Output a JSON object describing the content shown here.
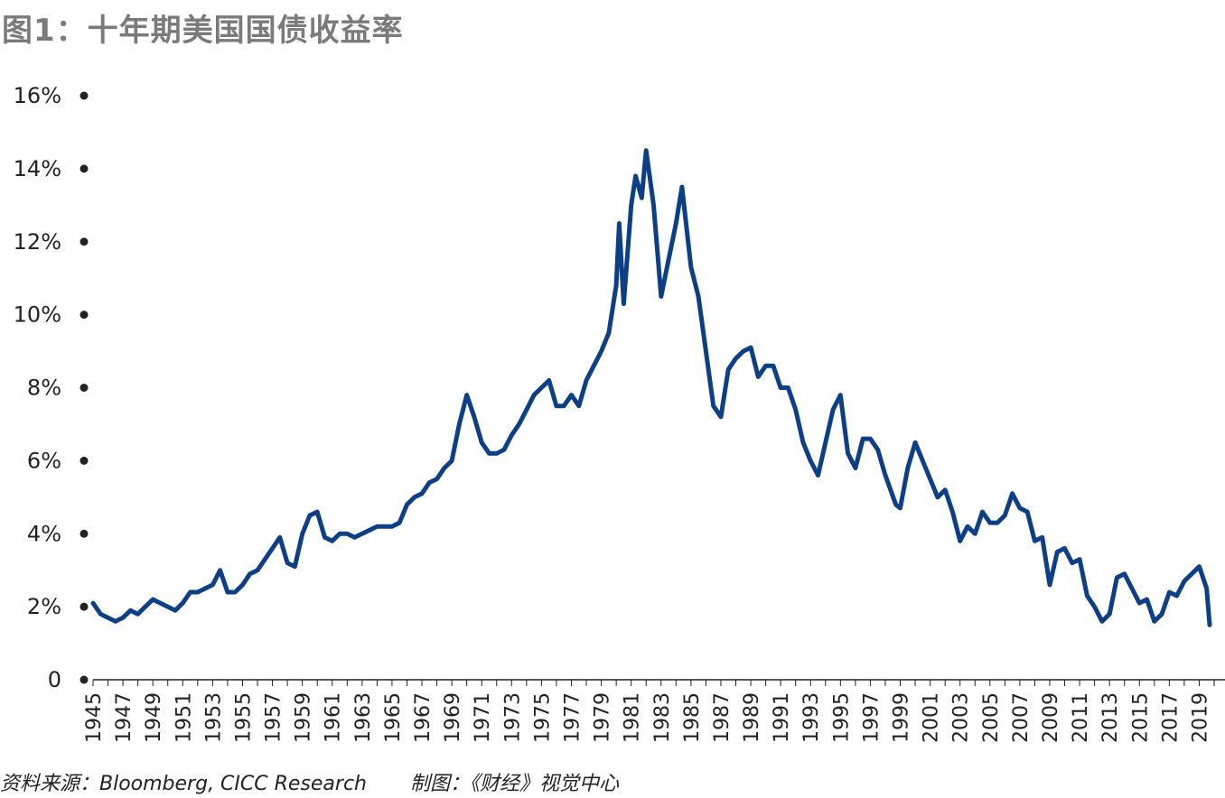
{
  "title": "图1：十年期美国国债收益率",
  "source": "资料来源：Bloomberg, CICC Research",
  "credit": "制图：《财经》视觉中心",
  "colors": {
    "line": "#0d3f87",
    "axis": "#222222",
    "title": "#7a7a7a"
  },
  "chart_data": {
    "type": "line",
    "title": "图1：十年期美国国债收益率",
    "xlabel": "",
    "ylabel": "",
    "xlim": [
      1945,
      2020
    ],
    "ylim": [
      0,
      16
    ],
    "yticks": [
      0,
      2,
      4,
      6,
      8,
      10,
      12,
      14,
      16
    ],
    "ytick_labels": [
      "0",
      "2%",
      "4%",
      "6%",
      "8%",
      "10%",
      "12%",
      "14%",
      "16%"
    ],
    "xtick_labels": [
      "1945",
      "1947",
      "1949",
      "1951",
      "1953",
      "1955",
      "1957",
      "1959",
      "1961",
      "1963",
      "1965",
      "1967",
      "1969",
      "1971",
      "1973",
      "1975",
      "1977",
      "1979",
      "1981",
      "1983",
      "1985",
      "1987",
      "1989",
      "1991",
      "1993",
      "1995",
      "1997",
      "1999",
      "2001",
      "2003",
      "2005",
      "2007",
      "2009",
      "2011",
      "2013",
      "2015",
      "2017",
      "2019"
    ],
    "grid": false,
    "series": [
      {
        "x": [
          1945.0,
          1945.5,
          1946.0,
          1946.5,
          1947.0,
          1947.5,
          1948.0,
          1948.5,
          1949.0,
          1949.5,
          1950.0,
          1950.5,
          1951.0,
          1951.5,
          1952.0,
          1952.5,
          1953.0,
          1953.5,
          1954.0,
          1954.5,
          1955.0,
          1955.5,
          1956.0,
          1956.5,
          1957.0,
          1957.5,
          1958.0,
          1958.5,
          1959.0,
          1959.5,
          1960.0,
          1960.5,
          1961.0,
          1961.5,
          1962.0,
          1962.5,
          1963.0,
          1963.5,
          1964.0,
          1964.5,
          1965.0,
          1965.5,
          1966.0,
          1966.5,
          1967.0,
          1967.5,
          1968.0,
          1968.5,
          1969.0,
          1969.5,
          1970.0,
          1970.5,
          1971.0,
          1971.5,
          1972.0,
          1972.5,
          1973.0,
          1973.5,
          1974.0,
          1974.5,
          1975.0,
          1975.5,
          1976.0,
          1976.5,
          1977.0,
          1977.5,
          1978.0,
          1978.5,
          1979.0,
          1979.5,
          1980.0,
          1980.2,
          1980.5,
          1981.0,
          1981.3,
          1981.7,
          1982.0,
          1982.5,
          1983.0,
          1983.5,
          1984.0,
          1984.4,
          1985.0,
          1985.5,
          1986.0,
          1986.5,
          1987.0,
          1987.5,
          1988.0,
          1988.5,
          1989.0,
          1989.5,
          1990.0,
          1990.5,
          1991.0,
          1991.5,
          1992.0,
          1992.5,
          1993.0,
          1993.5,
          1994.0,
          1994.5,
          1995.0,
          1995.5,
          1996.0,
          1996.5,
          1997.0,
          1997.5,
          1998.0,
          1998.7,
          1999.0,
          1999.5,
          2000.0,
          2000.5,
          2001.0,
          2001.5,
          2002.0,
          2002.5,
          2003.0,
          2003.5,
          2004.0,
          2004.5,
          2005.0,
          2005.5,
          2006.0,
          2006.5,
          2007.0,
          2007.5,
          2008.0,
          2008.5,
          2009.0,
          2009.5,
          2010.0,
          2010.5,
          2011.0,
          2011.5,
          2012.0,
          2012.5,
          2013.0,
          2013.5,
          2014.0,
          2014.5,
          2015.0,
          2015.5,
          2016.0,
          2016.5,
          2017.0,
          2017.5,
          2018.0,
          2018.5,
          2019.0,
          2019.5,
          2019.7
        ],
        "y": [
          2.1,
          1.8,
          1.7,
          1.6,
          1.7,
          1.9,
          1.8,
          2.0,
          2.2,
          2.1,
          2.0,
          1.9,
          2.1,
          2.4,
          2.4,
          2.5,
          2.6,
          3.0,
          2.4,
          2.4,
          2.6,
          2.9,
          3.0,
          3.3,
          3.6,
          3.9,
          3.2,
          3.1,
          4.0,
          4.5,
          4.6,
          3.9,
          3.8,
          4.0,
          4.0,
          3.9,
          4.0,
          4.1,
          4.2,
          4.2,
          4.2,
          4.3,
          4.8,
          5.0,
          5.1,
          5.4,
          5.5,
          5.8,
          6.0,
          7.0,
          7.8,
          7.2,
          6.5,
          6.2,
          6.2,
          6.3,
          6.7,
          7.0,
          7.4,
          7.8,
          8.0,
          8.2,
          7.5,
          7.5,
          7.8,
          7.5,
          8.2,
          8.6,
          9.0,
          9.5,
          10.8,
          12.5,
          10.3,
          13.0,
          13.8,
          13.2,
          14.5,
          13.0,
          10.5,
          11.5,
          12.5,
          13.5,
          11.3,
          10.5,
          9.0,
          7.5,
          7.2,
          8.5,
          8.8,
          9.0,
          9.1,
          8.3,
          8.6,
          8.6,
          8.0,
          8.0,
          7.4,
          6.5,
          6.0,
          5.6,
          6.5,
          7.4,
          7.8,
          6.2,
          5.8,
          6.6,
          6.6,
          6.3,
          5.6,
          4.8,
          4.7,
          5.8,
          6.5,
          6.0,
          5.5,
          5.0,
          5.2,
          4.6,
          3.8,
          4.2,
          4.0,
          4.6,
          4.3,
          4.3,
          4.5,
          5.1,
          4.7,
          4.6,
          3.8,
          3.9,
          2.6,
          3.5,
          3.6,
          3.2,
          3.3,
          2.3,
          2.0,
          1.6,
          1.8,
          2.8,
          2.9,
          2.5,
          2.1,
          2.2,
          1.6,
          1.8,
          2.4,
          2.3,
          2.7,
          2.9,
          3.1,
          2.5,
          1.5
        ]
      }
    ]
  }
}
